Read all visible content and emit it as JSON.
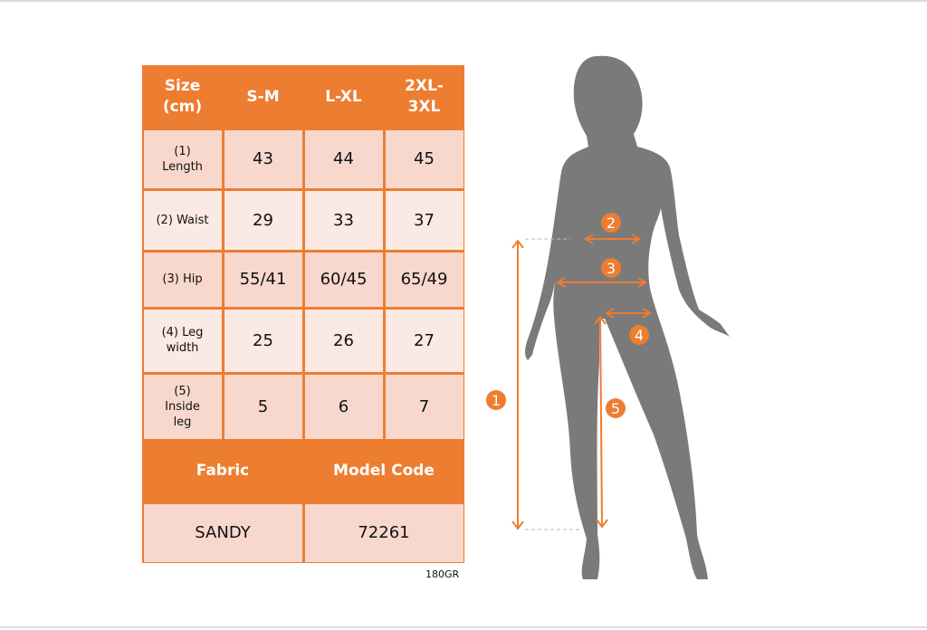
{
  "table": {
    "header": [
      "Size\n(cm)",
      "S-M",
      "L-XL",
      "2XL-\n3XL"
    ],
    "rows": [
      {
        "label": "(1)\nLength",
        "values": [
          "43",
          "44",
          "45"
        ]
      },
      {
        "label": "(2) Waist",
        "values": [
          "29",
          "33",
          "37"
        ]
      },
      {
        "label": "(3) Hip",
        "values": [
          "55/41",
          "60/45",
          "65/49"
        ]
      },
      {
        "label": "(4) Leg\nwidth",
        "values": [
          "25",
          "26",
          "27"
        ]
      },
      {
        "label": "(5)\nInside\nleg",
        "values": [
          "5",
          "6",
          "7"
        ]
      }
    ],
    "fabric_header": "Fabric",
    "model_code_header": "Model Code",
    "fabric": "SANDY",
    "model_code": "72261"
  },
  "footnote": "180GR",
  "figure": {
    "markers": [
      "1",
      "2",
      "3",
      "4",
      "5"
    ]
  },
  "colors": {
    "accent": "#ED7D31",
    "silhouette": "#7A7A7A",
    "row_dark": "#F8D8CD",
    "row_light": "#FBE9E3"
  }
}
